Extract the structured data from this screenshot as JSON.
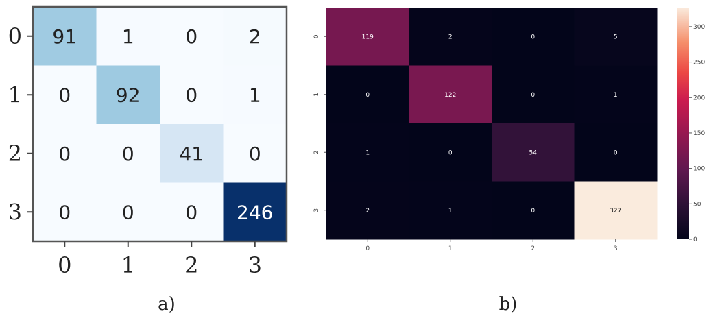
{
  "chart_data": [
    {
      "type": "heatmap",
      "panel_label": "a)",
      "rows": [
        "0",
        "1",
        "2",
        "3"
      ],
      "cols": [
        "0",
        "1",
        "2",
        "3"
      ],
      "values": [
        [
          91,
          1,
          0,
          2
        ],
        [
          0,
          92,
          0,
          1
        ],
        [
          0,
          0,
          41,
          0
        ],
        [
          0,
          0,
          0,
          246
        ]
      ],
      "colormap": "Blues",
      "vmax": 246
    },
    {
      "type": "heatmap",
      "panel_label": "b)",
      "rows": [
        "0",
        "1",
        "2",
        "3"
      ],
      "cols": [
        "0",
        "1",
        "2",
        "3"
      ],
      "values": [
        [
          119,
          2,
          0,
          5
        ],
        [
          0,
          122,
          0,
          1
        ],
        [
          1,
          0,
          54,
          0
        ],
        [
          2,
          1,
          0,
          327
        ]
      ],
      "colormap": "rocket",
      "vmax": 327,
      "colorbar_ticks": [
        0,
        50,
        100,
        150,
        200,
        250,
        300
      ]
    }
  ]
}
